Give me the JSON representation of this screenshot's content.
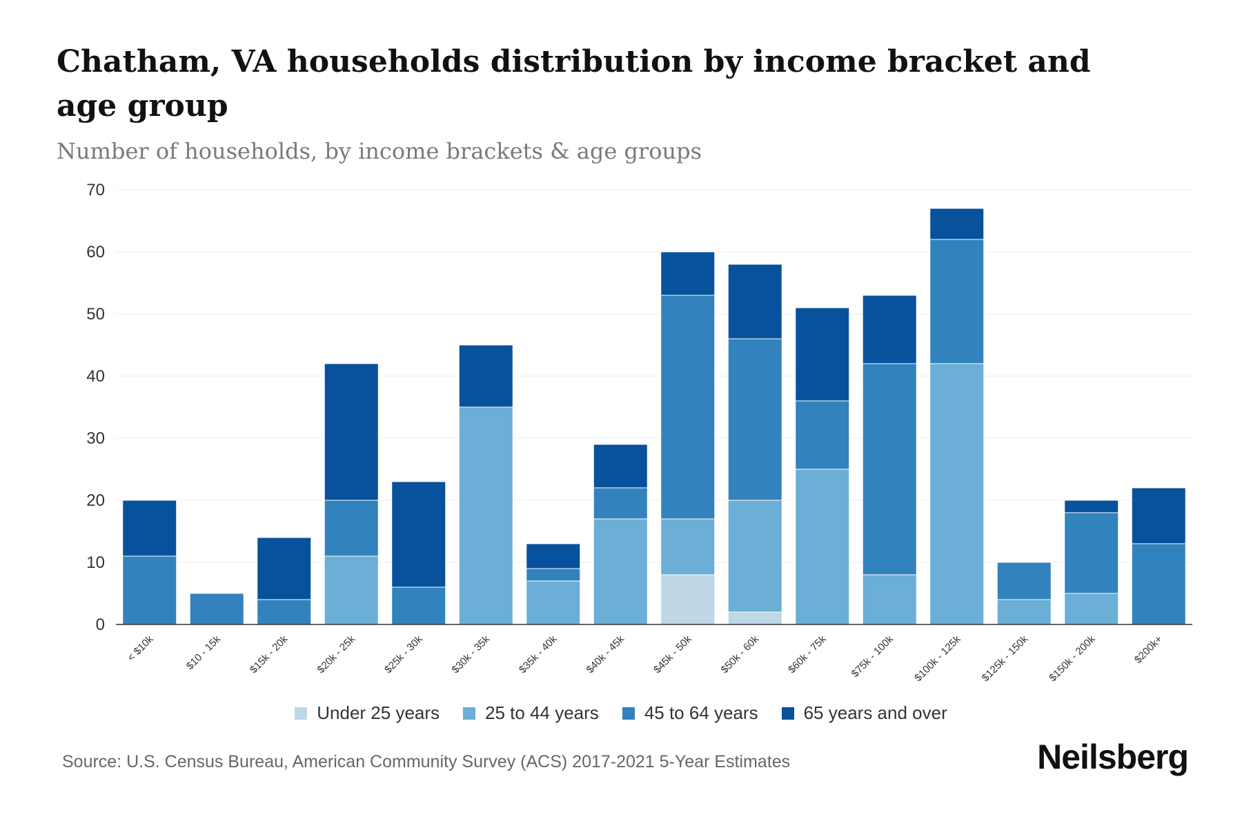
{
  "title": "Chatham, VA households distribution by income bracket and age group",
  "subtitle": "Number of households, by income brackets & age groups",
  "source": "Source: U.S. Census Bureau, American Community Survey (ACS) 2017-2021 5-Year Estimates",
  "brand": "Neilsberg",
  "chart_data": {
    "type": "bar",
    "stacked": true,
    "categories": [
      "< $10k",
      "$10 - 15k",
      "$15k - 20k",
      "$20k - 25k",
      "$25k - 30k",
      "$30k - 35k",
      "$35k - 40k",
      "$40k - 45k",
      "$45k - 50k",
      "$50k - 60k",
      "$60k - 75k",
      "$75k - 100k",
      "$100k - 125k",
      "$125k - 150k",
      "$150k - 200k",
      "$200k+"
    ],
    "series": [
      {
        "name": "Under 25 years",
        "color": "#bdd7e7",
        "values": [
          0,
          0,
          0,
          0,
          0,
          0,
          0,
          0,
          8,
          2,
          0,
          0,
          0,
          0,
          0,
          0
        ]
      },
      {
        "name": "25 to 44 years",
        "color": "#6baed6",
        "values": [
          0,
          0,
          0,
          11,
          0,
          35,
          7,
          17,
          9,
          18,
          25,
          8,
          42,
          4,
          5,
          0
        ]
      },
      {
        "name": "45 to 64 years",
        "color": "#3182bd",
        "values": [
          11,
          5,
          4,
          9,
          6,
          0,
          2,
          5,
          36,
          26,
          11,
          34,
          20,
          6,
          13,
          13
        ]
      },
      {
        "name": "65 years and over",
        "color": "#08519c",
        "values": [
          9,
          0,
          10,
          22,
          17,
          10,
          4,
          7,
          7,
          12,
          15,
          11,
          5,
          0,
          2,
          9
        ]
      }
    ],
    "yticks": [
      0,
      10,
      20,
      30,
      40,
      50,
      60,
      70
    ],
    "ylim": [
      0,
      70
    ],
    "xlabel": "",
    "ylabel": "",
    "grid": true,
    "legend": "bottom-center"
  }
}
